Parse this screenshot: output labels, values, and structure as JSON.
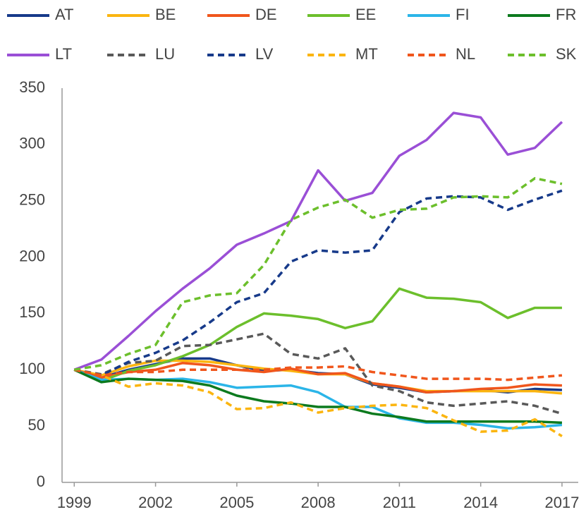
{
  "chart_data": {
    "type": "line",
    "x": [
      1999,
      2000,
      2001,
      2002,
      2003,
      2004,
      2005,
      2006,
      2007,
      2008,
      2009,
      2010,
      2011,
      2012,
      2013,
      2014,
      2015,
      2016,
      2017
    ],
    "xlim": [
      1998.55,
      2017.6
    ],
    "xticks": [
      1999,
      2002,
      2005,
      2008,
      2011,
      2014,
      2017
    ],
    "ylim": [
      0,
      350
    ],
    "yticks": [
      0,
      50,
      100,
      150,
      200,
      250,
      300,
      350
    ],
    "grid": false,
    "series": [
      {
        "name": "AT",
        "color": "#173a8a",
        "dashed": false,
        "values": [
          100,
          93,
          100,
          105,
          110,
          110,
          104,
          99,
          100,
          97,
          96,
          87,
          84,
          80,
          81,
          82,
          80,
          83,
          82
        ]
      },
      {
        "name": "BE",
        "color": "#fbb510",
        "dashed": false,
        "values": [
          100,
          95,
          103,
          108,
          108,
          107,
          104,
          101,
          99,
          96,
          96,
          88,
          85,
          81,
          81,
          81,
          81,
          81,
          79
        ]
      },
      {
        "name": "DE",
        "color": "#f0561c",
        "dashed": false,
        "values": [
          100,
          93,
          98,
          100,
          106,
          104,
          100,
          98,
          101,
          96,
          97,
          88,
          85,
          80,
          81,
          83,
          84,
          87,
          86
        ]
      },
      {
        "name": "EE",
        "color": "#6cbf2c",
        "dashed": false,
        "values": [
          100,
          90,
          99,
          104,
          112,
          122,
          138,
          150,
          148,
          145,
          137,
          143,
          172,
          164,
          163,
          160,
          146,
          155,
          155
        ]
      },
      {
        "name": "FI",
        "color": "#2bb5e8",
        "dashed": false,
        "values": [
          100,
          91,
          92,
          91,
          92,
          89,
          84,
          85,
          86,
          80,
          67,
          67,
          57,
          53,
          53,
          51,
          48,
          49,
          51
        ]
      },
      {
        "name": "FR",
        "color": "#0c7a1e",
        "dashed": false,
        "values": [
          100,
          89,
          92,
          91,
          90,
          86,
          77,
          72,
          70,
          67,
          67,
          61,
          58,
          54,
          54,
          54,
          54,
          54,
          53
        ]
      },
      {
        "name": "LT",
        "color": "#9a4fd6",
        "dashed": false,
        "values": [
          100,
          109,
          130,
          152,
          172,
          190,
          211,
          221,
          232,
          277,
          250,
          257,
          290,
          304,
          328,
          324,
          291,
          297,
          320
        ]
      },
      {
        "name": "LU",
        "color": "#595959",
        "dashed": true,
        "values": [
          100,
          96,
          106,
          108,
          121,
          122,
          127,
          132,
          114,
          110,
          119,
          86,
          81,
          71,
          68,
          70,
          72,
          68,
          61
        ]
      },
      {
        "name": "LV",
        "color": "#173a8a",
        "dashed": true,
        "values": [
          100,
          95,
          107,
          115,
          126,
          142,
          160,
          168,
          196,
          206,
          204,
          206,
          240,
          252,
          254,
          253,
          242,
          251,
          259
        ]
      },
      {
        "name": "MT",
        "color": "#fbb510",
        "dashed": true,
        "values": [
          100,
          95,
          85,
          88,
          86,
          80,
          65,
          66,
          71,
          62,
          66,
          68,
          69,
          66,
          55,
          45,
          46,
          56,
          41
        ]
      },
      {
        "name": "NL",
        "color": "#f0561c",
        "dashed": true,
        "values": [
          100,
          95,
          98,
          98,
          100,
          100,
          100,
          100,
          102,
          102,
          103,
          98,
          95,
          92,
          92,
          92,
          91,
          93,
          95
        ]
      },
      {
        "name": "SK",
        "color": "#6cbf2c",
        "dashed": true,
        "values": [
          100,
          104,
          114,
          122,
          160,
          166,
          168,
          193,
          233,
          244,
          251,
          235,
          242,
          243,
          253,
          254,
          253,
          270,
          265
        ]
      }
    ]
  }
}
